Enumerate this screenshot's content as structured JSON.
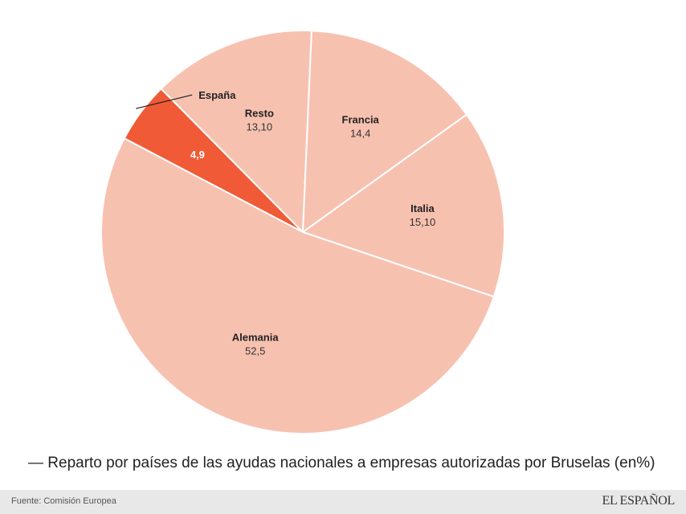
{
  "chart_data": {
    "type": "pie",
    "title": "Reparto por países de las ayudas nacionales a empresas autorizadas por Bruselas (en%)",
    "slices": [
      {
        "label": "España",
        "value": 4.9,
        "display": "4,9",
        "color": "#f05a36",
        "highlight": true
      },
      {
        "label": "Resto",
        "value": 13.1,
        "display": "13,10",
        "color": "#f7c1b0"
      },
      {
        "label": "Francia",
        "value": 14.4,
        "display": "14,4",
        "color": "#f7c1b0"
      },
      {
        "label": "Italia",
        "value": 15.1,
        "display": "15,10",
        "color": "#f7c1b0"
      },
      {
        "label": "Alemania",
        "value": 52.5,
        "display": "52,5",
        "color": "#f7c1b0"
      }
    ]
  },
  "caption": {
    "prefix": "—",
    "text": "Reparto por países de las ayudas nacionales a empresas autorizadas por Bruselas (en%)"
  },
  "footer": {
    "source": "Fuente: Comisión Europea",
    "brand": "EL ESPAÑOL"
  }
}
